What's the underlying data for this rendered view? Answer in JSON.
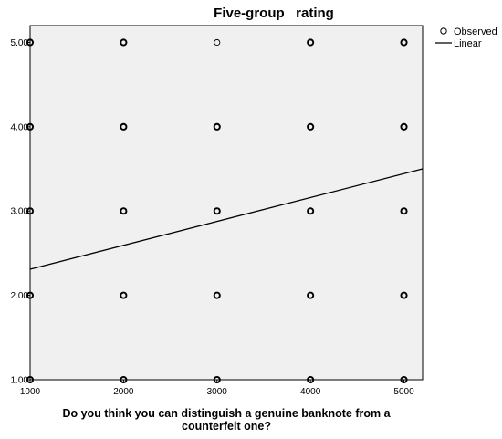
{
  "chart_data": {
    "type": "scatter",
    "title": "Five-group   rating",
    "xlabel_lines": [
      "Do you think you can distinguish a genuine banknote from a",
      "counterfeit one?"
    ],
    "ylabel": "",
    "xlim": [
      1000,
      5200
    ],
    "ylim": [
      1.0,
      5.2
    ],
    "x_ticks": [
      1000,
      2000,
      3000,
      4000,
      5000
    ],
    "x_tick_labels": [
      "1000",
      "2000",
      "3000",
      "4000",
      "5000"
    ],
    "y_ticks": [
      1,
      2,
      3,
      4,
      5
    ],
    "y_tick_labels": [
      "1.00",
      "2.00",
      "3.00",
      "4.00",
      "5.00"
    ],
    "grid": false,
    "legend_position": "right",
    "legend": [
      {
        "label": "Observed",
        "marker": "circle"
      },
      {
        "label": "Linear",
        "marker": "line"
      }
    ],
    "series": [
      {
        "name": "Observed",
        "type": "scatter",
        "points": [
          {
            "x": 1000,
            "y": 1,
            "weight": "bold"
          },
          {
            "x": 1000,
            "y": 2,
            "weight": "bold"
          },
          {
            "x": 1000,
            "y": 3,
            "weight": "bold"
          },
          {
            "x": 1000,
            "y": 4,
            "weight": "bold"
          },
          {
            "x": 1000,
            "y": 5,
            "weight": "bold"
          },
          {
            "x": 2000,
            "y": 1,
            "weight": "bold"
          },
          {
            "x": 2000,
            "y": 2,
            "weight": "bold"
          },
          {
            "x": 2000,
            "y": 3,
            "weight": "bold"
          },
          {
            "x": 2000,
            "y": 4,
            "weight": "bold"
          },
          {
            "x": 2000,
            "y": 5,
            "weight": "bold"
          },
          {
            "x": 3000,
            "y": 1,
            "weight": "bold"
          },
          {
            "x": 3000,
            "y": 2,
            "weight": "bold"
          },
          {
            "x": 3000,
            "y": 3,
            "weight": "bold"
          },
          {
            "x": 3000,
            "y": 4,
            "weight": "bold"
          },
          {
            "x": 3000,
            "y": 5,
            "weight": "light"
          },
          {
            "x": 4000,
            "y": 1,
            "weight": "bold"
          },
          {
            "x": 4000,
            "y": 2,
            "weight": "bold"
          },
          {
            "x": 4000,
            "y": 3,
            "weight": "bold"
          },
          {
            "x": 4000,
            "y": 4,
            "weight": "bold"
          },
          {
            "x": 4000,
            "y": 5,
            "weight": "bold"
          },
          {
            "x": 5000,
            "y": 1,
            "weight": "bold"
          },
          {
            "x": 5000,
            "y": 2,
            "weight": "bold"
          },
          {
            "x": 5000,
            "y": 3,
            "weight": "bold"
          },
          {
            "x": 5000,
            "y": 4,
            "weight": "bold"
          },
          {
            "x": 5000,
            "y": 5,
            "weight": "bold"
          }
        ]
      },
      {
        "name": "Linear",
        "type": "line",
        "points": [
          {
            "x": 1000,
            "y": 2.31
          },
          {
            "x": 5200,
            "y": 3.5
          }
        ]
      }
    ],
    "colors": {
      "plot_background": "#f0f0f0",
      "axis": "#000000",
      "marker": "#000000",
      "line": "#000000"
    }
  }
}
